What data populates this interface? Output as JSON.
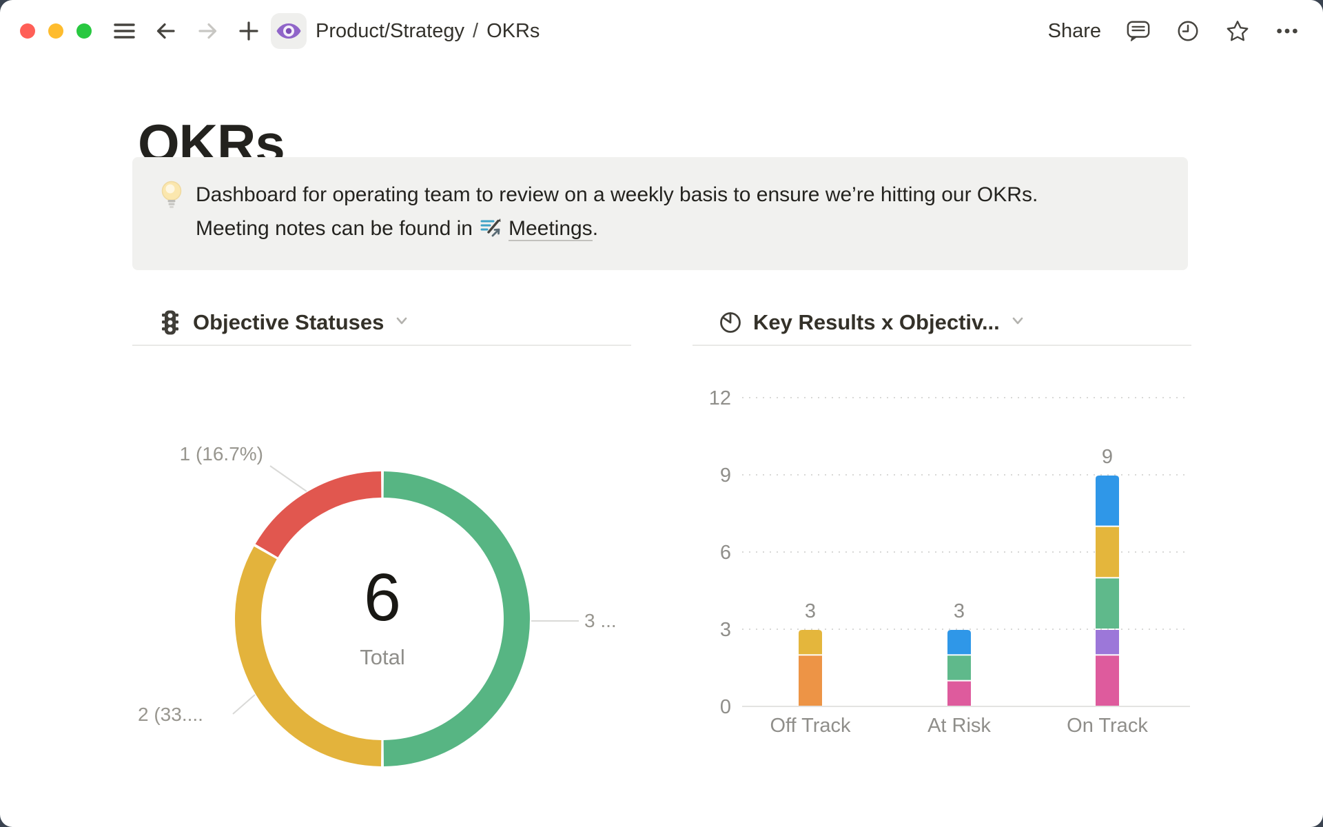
{
  "window": {
    "toolbar": {
      "breadcrumb": {
        "items": [
          "Product/Strategy",
          "OKRs"
        ],
        "separator": "/"
      },
      "share_label": "Share"
    }
  },
  "page": {
    "title": "OKRs"
  },
  "callout": {
    "line1": "Dashboard for operating team to review on a weekly basis to ensure we’re hitting our OKRs.",
    "line2_prefix": "Meeting notes can be found in",
    "link_label": "Meetings",
    "line2_suffix": "."
  },
  "charts": {
    "left_title": "Objective Statuses",
    "right_title": "Key Results x Objectiv..."
  },
  "chart_data": [
    {
      "type": "pie",
      "variant": "donut",
      "title": "Objective Statuses",
      "total": 6,
      "center_value": 6,
      "center_label": "Total",
      "start_angle": "top",
      "direction": "clockwise",
      "segments": [
        {
          "color_name": "green",
          "color": "#57B583",
          "value": 3,
          "percent": 50,
          "label": "3 ...",
          "label_slot": "right"
        },
        {
          "color_name": "yellow",
          "color": "#E3B33C",
          "value": 2,
          "percent": 33.33,
          "label": "2 (33....",
          "label_slot": "bottom-left"
        },
        {
          "color_name": "red",
          "color": "#E1574F",
          "value": 1,
          "percent": 16.67,
          "label": "1 (16.7%)",
          "label_slot": "top-left"
        }
      ]
    },
    {
      "type": "bar",
      "variant": "stacked",
      "title": "Key Results x Objectiv...",
      "categories": [
        "Off Track",
        "At Risk",
        "On Track"
      ],
      "totals": [
        3,
        3,
        9
      ],
      "yticks": [
        0,
        3,
        6,
        9,
        12
      ],
      "ylim": [
        0,
        12
      ],
      "grid": "dotted",
      "stacks": [
        [
          {
            "color_name": "orange",
            "color": "#ED9446",
            "value": 2
          },
          {
            "color_name": "yellow",
            "color": "#E4B63C",
            "value": 1
          }
        ],
        [
          {
            "color_name": "pink",
            "color": "#DE5B9D",
            "value": 1
          },
          {
            "color_name": "green",
            "color": "#5FB98B",
            "value": 1
          },
          {
            "color_name": "blue",
            "color": "#2F97E8",
            "value": 1
          }
        ],
        [
          {
            "color_name": "pink",
            "color": "#DE5B9D",
            "value": 2
          },
          {
            "color_name": "purple",
            "color": "#9C77D9",
            "value": 1
          },
          {
            "color_name": "green",
            "color": "#5FB98B",
            "value": 2
          },
          {
            "color_name": "yellow",
            "color": "#E4B63C",
            "value": 2
          },
          {
            "color_name": "blue",
            "color": "#2F97E8",
            "value": 2
          }
        ]
      ]
    }
  ]
}
